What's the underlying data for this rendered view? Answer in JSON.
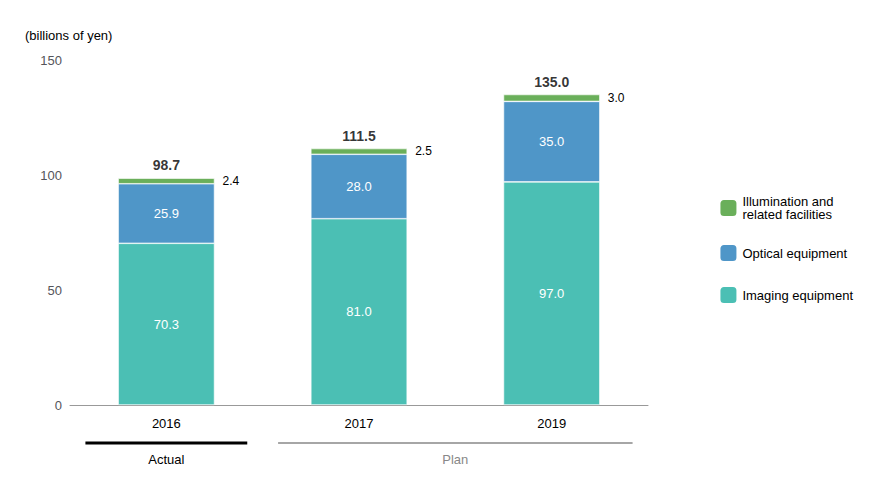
{
  "chart_data": {
    "type": "bar",
    "stacked": true,
    "data_labels": true,
    "ylabel": "(billions of yen)",
    "categories": [
      "2016",
      "2017",
      "2019"
    ],
    "series": [
      {
        "name": "Imaging equipment",
        "color": "#4BBFB4",
        "values": [
          70.3,
          81.0,
          97.0
        ],
        "value_labels": [
          "70.3",
          "81.0",
          "97.0"
        ]
      },
      {
        "name": "Optical equipment",
        "color": "#4F96C8",
        "values": [
          25.9,
          28.0,
          35.0
        ],
        "value_labels": [
          "25.9",
          "28.0",
          "35.0"
        ]
      },
      {
        "name": "Illumination and\nrelated facilities",
        "color": "#6AAF5A",
        "values": [
          2.4,
          2.5,
          3.0
        ],
        "value_labels": [
          "2.4",
          "2.5",
          "3.0"
        ]
      }
    ],
    "totals": {
      "values": [
        98.7,
        111.5,
        135.0
      ],
      "value_labels": [
        "98.7",
        "111.5",
        "135.0"
      ]
    },
    "annotations": [
      {
        "text": "Actual",
        "categories": [
          "2016"
        ],
        "color": "#000000"
      },
      {
        "text": "Plan",
        "categories": [
          "2017",
          "2019"
        ],
        "color": "#888888"
      }
    ],
    "ylim": [
      0,
      150
    ],
    "yticks": [
      0,
      50,
      100,
      150
    ],
    "grid": false,
    "legend": "right"
  }
}
